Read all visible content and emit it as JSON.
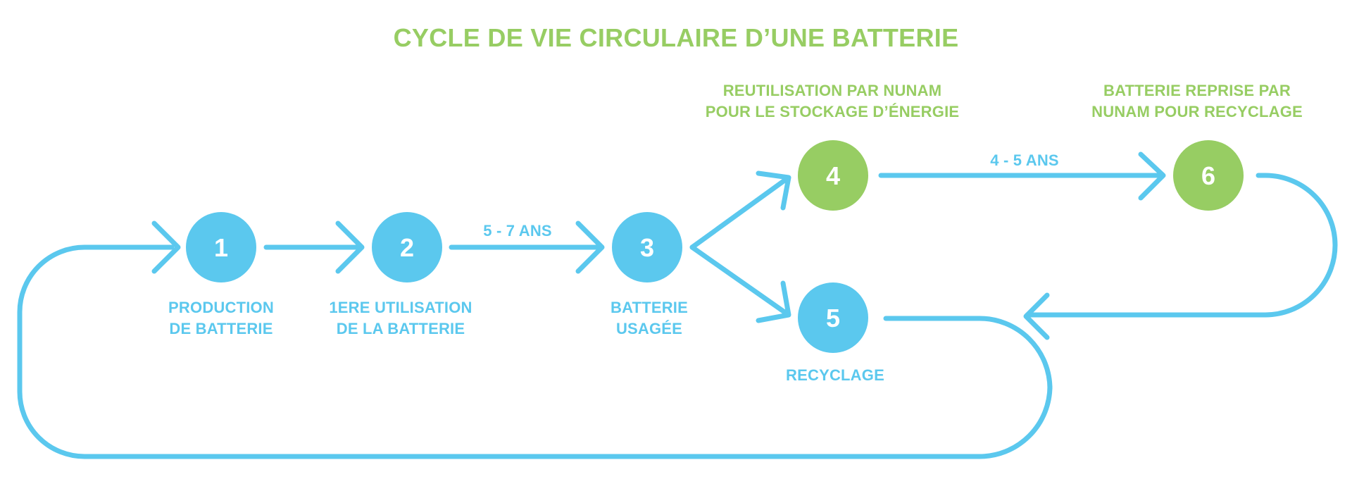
{
  "title": "CYCLE DE VIE CIRCULAIRE D’UNE BATTERIE",
  "colors": {
    "blue": "#5bc8ee",
    "green": "#97cd63",
    "background": "#ffffff"
  },
  "steps": [
    {
      "number": "1",
      "color": "blue",
      "label": [
        "PRODUCTION",
        "DE BATTERIE"
      ]
    },
    {
      "number": "2",
      "color": "blue",
      "label": [
        "1ERE UTILISATION",
        "DE LA BATTERIE"
      ]
    },
    {
      "number": "3",
      "color": "blue",
      "label": [
        "BATTERIE",
        "USAGÉE"
      ]
    },
    {
      "number": "4",
      "color": "green",
      "label": [
        "REUTILISATION PAR NUNAM",
        "POUR LE STOCKAGE D’ÉNERGIE"
      ]
    },
    {
      "number": "5",
      "color": "blue",
      "label": [
        "RECYCLAGE"
      ]
    },
    {
      "number": "6",
      "color": "green",
      "label": [
        "BATTERIE REPRISE PAR",
        "NUNAM POUR RECYCLAGE"
      ]
    }
  ],
  "durations": {
    "first_use": "5 - 7 ANS",
    "reuse": "4 - 5 ANS"
  }
}
